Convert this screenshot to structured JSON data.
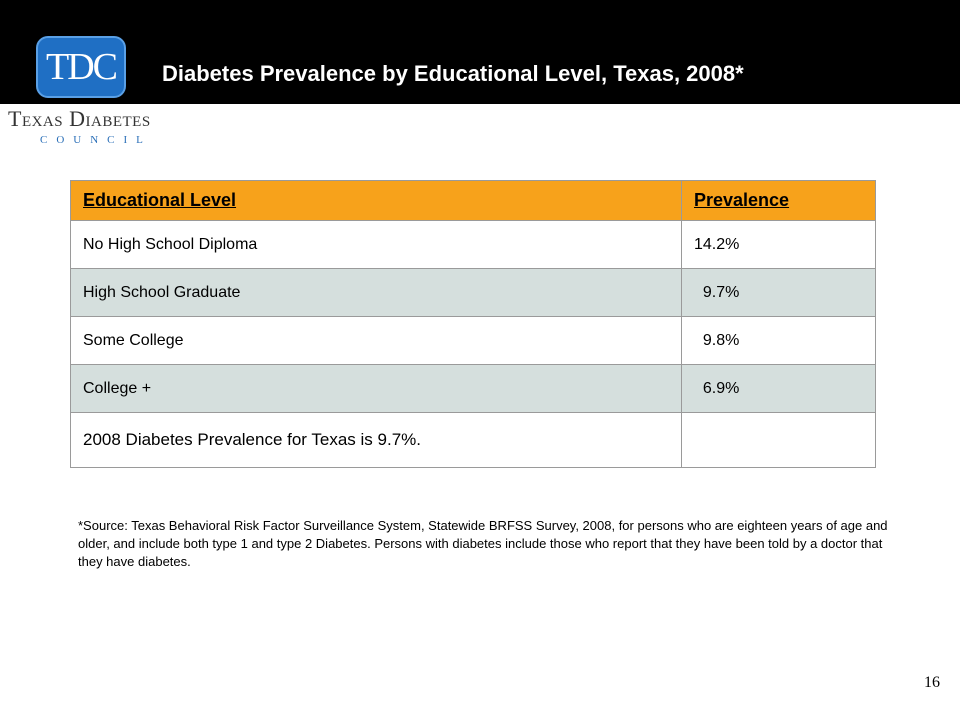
{
  "header": {
    "title": "Diabetes Prevalence by Educational Level, Texas, 2008*"
  },
  "logo": {
    "monogram": "TDC",
    "name": "Texas Diabetes",
    "subname": "COUNCIL"
  },
  "table": {
    "headers": [
      "Educational Level",
      "Prevalence"
    ],
    "rows": [
      [
        "No High School Diploma",
        "14.2%"
      ],
      [
        "High School Graduate",
        "  9.7%"
      ],
      [
        "Some College",
        "  9.8%"
      ],
      [
        "College +",
        "  6.9%"
      ],
      [
        "2008 Diabetes Prevalence for Texas is 9.7%.",
        ""
      ]
    ]
  },
  "source_note": "*Source:  Texas Behavioral Risk Factor Surveillance System, Statewide BRFSS Survey, 2008,  for persons who are eighteen years of age and older, and include both type 1 and type 2 Diabetes.  Persons with diabetes include those who report that they have been told by a doctor that they have diabetes.",
  "page_number": "16",
  "colors": {
    "header_bg": "#000000",
    "table_header_bg": "#f7a21b",
    "alt_row_bg": "#d5dfdd",
    "logo_blue": "#1f6fc4"
  }
}
